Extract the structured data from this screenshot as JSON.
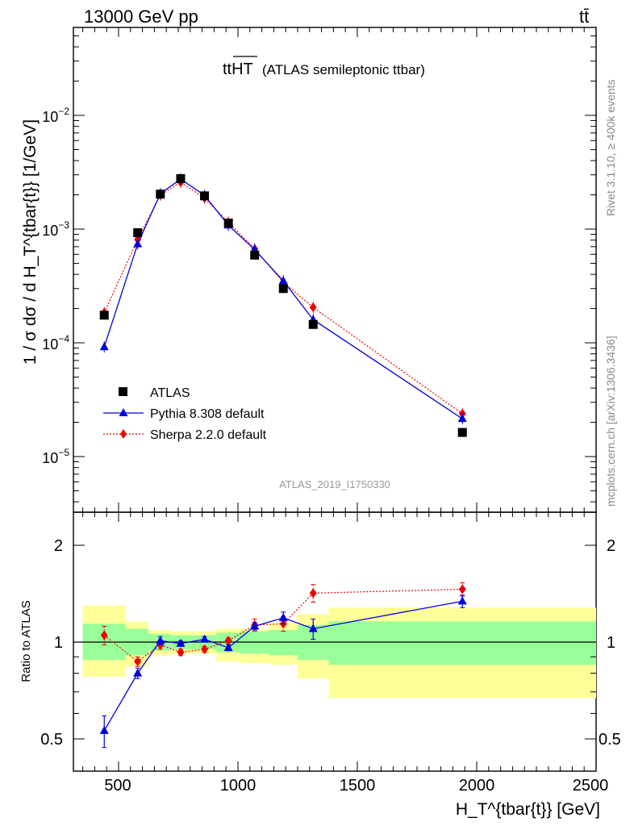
{
  "header": {
    "energy_label": "13000 GeV pp",
    "process_label": "tt̄"
  },
  "main_panel": {
    "title_main": "ttHT",
    "title_desc": "(ATLAS semileptonic ttbar)",
    "analysis_tag": "ATLAS_2019_I1750330",
    "ylabel": "1 / σ dσ / d H_T^{tbar{t}} [1/GeV]",
    "yticks": [
      "10^-2",
      "10^-3",
      "10^-4",
      "10^-5"
    ]
  },
  "ratio_panel": {
    "ylabel": "Ratio to ATLAS",
    "yticks_left": [
      "2",
      "1",
      "0.5"
    ],
    "yticks_right": [
      "2",
      "1",
      "0.5"
    ]
  },
  "xaxis": {
    "label": "H_T^{tbar{t}} [GeV]",
    "ticks": [
      "500",
      "1000",
      "1500",
      "2000",
      "2500"
    ]
  },
  "side_labels": {
    "rivet": "Rivet 3.1.10, ≥ 400k events",
    "mcplots": "mcplots.cern.ch [arXiv:1306.3436]"
  },
  "legend": {
    "atlas": "ATLAS",
    "pythia": "Pythia 8.308 default",
    "sherpa": "Sherpa 2.2.0 default"
  },
  "colors": {
    "pythia": "#0000dd",
    "sherpa": "#ee0000",
    "band_inner": "#99ff99",
    "band_outer": "#ffff99"
  },
  "chart_data": {
    "type": "line",
    "xlim": [
      325,
      2500
    ],
    "ylim_main": [
      3e-06,
      0.05
    ],
    "ylog_main": true,
    "ylim_ratio": [
      0.4,
      2.4
    ],
    "ylog_ratio": true,
    "x": [
      440,
      580,
      675,
      760,
      860,
      960,
      1070,
      1190,
      1315,
      1940
    ],
    "series": [
      {
        "name": "ATLAS",
        "values": [
          0.000175,
          0.00093,
          0.00203,
          0.00278,
          0.00196,
          0.00113,
          0.00059,
          0.0003,
          0.000145,
          1.63e-05
        ]
      },
      {
        "name": "Pythia 8.308 default",
        "values": [
          9.2e-05,
          0.00074,
          0.00205,
          0.00275,
          0.00198,
          0.00108,
          0.00066,
          0.00035,
          0.00016,
          2.15e-05
        ]
      },
      {
        "name": "Sherpa 2.2.0 default",
        "values": [
          0.000184,
          0.00081,
          0.00199,
          0.00258,
          0.00187,
          0.00115,
          0.00067,
          0.00034,
          0.000205,
          2.38e-05
        ]
      }
    ],
    "ratio": {
      "bin_edges": [
        350,
        530,
        625,
        720,
        810,
        910,
        1010,
        1130,
        1250,
        1380,
        2500
      ],
      "band_inner": [
        [
          0.88,
          1.14
        ],
        [
          0.91,
          1.1
        ],
        [
          0.94,
          1.06
        ],
        [
          0.95,
          1.05
        ],
        [
          0.95,
          1.05
        ],
        [
          0.93,
          1.07
        ],
        [
          0.92,
          1.08
        ],
        [
          0.91,
          1.09
        ],
        [
          0.88,
          1.13
        ],
        [
          0.85,
          1.16
        ]
      ],
      "band_outer": [
        [
          0.78,
          1.3
        ],
        [
          0.84,
          1.16
        ],
        [
          0.91,
          1.09
        ],
        [
          0.92,
          1.08
        ],
        [
          0.92,
          1.08
        ],
        [
          0.87,
          1.1
        ],
        [
          0.86,
          1.1
        ],
        [
          0.85,
          1.15
        ],
        [
          0.77,
          1.22
        ],
        [
          0.67,
          1.28
        ]
      ],
      "pythia": [
        0.53,
        0.8,
        1.01,
        0.99,
        1.02,
        0.96,
        1.12,
        1.19,
        1.1,
        1.34
      ],
      "pythia_err": [
        0.06,
        0.03,
        0.03,
        0.02,
        0.02,
        0.02,
        0.03,
        0.05,
        0.08,
        0.06
      ],
      "sherpa": [
        1.05,
        0.87,
        0.98,
        0.93,
        0.95,
        1.01,
        1.13,
        1.14,
        1.42,
        1.46
      ],
      "sherpa_err": [
        0.07,
        0.03,
        0.03,
        0.02,
        0.02,
        0.02,
        0.05,
        0.06,
        0.09,
        0.07
      ]
    }
  }
}
